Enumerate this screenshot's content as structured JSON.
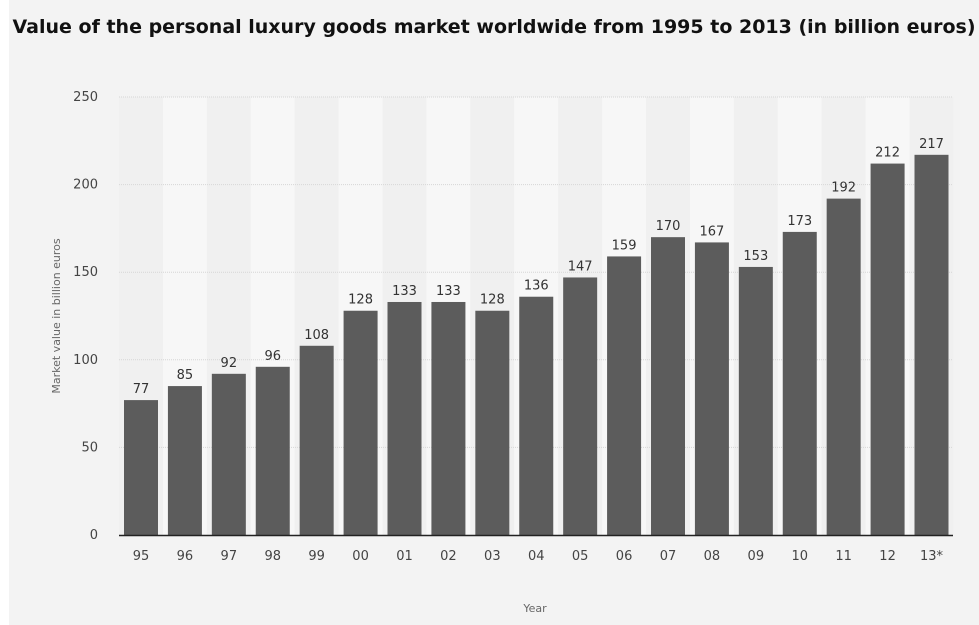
{
  "chart_data": {
    "type": "bar",
    "title": "Value of the personal luxury goods market worldwide from 1995 to 2013 (in billion euros)",
    "xlabel": "Year",
    "ylabel": "Market value in billion euros",
    "categories": [
      "95",
      "96",
      "97",
      "98",
      "99",
      "00",
      "01",
      "02",
      "03",
      "04",
      "05",
      "06",
      "07",
      "08",
      "09",
      "10",
      "11",
      "12",
      "13*"
    ],
    "values": [
      77,
      85,
      92,
      96,
      108,
      128,
      133,
      133,
      128,
      136,
      147,
      159,
      170,
      167,
      153,
      173,
      192,
      212,
      217
    ],
    "ylim": [
      0,
      250
    ],
    "yticks": [
      0,
      50,
      100,
      150,
      200,
      250
    ],
    "grid": true,
    "bar_color": "#5c5c5c",
    "data_labels": true
  }
}
